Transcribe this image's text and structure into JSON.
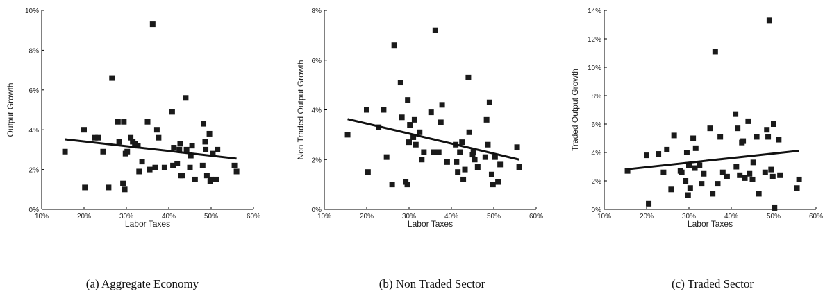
{
  "chart_data": [
    {
      "type": "scatter",
      "caption": "(a) Aggregate Economy",
      "xlabel": "Labor Taxes",
      "ylabel": "Output Growth",
      "xlim": [
        0.1,
        0.6
      ],
      "ylim": [
        0,
        0.1
      ],
      "xticks": [
        0.1,
        0.2,
        0.3,
        0.4,
        0.5,
        0.6
      ],
      "xtick_labels": [
        "10%",
        "20%",
        "30%",
        "40%",
        "50%",
        "60%"
      ],
      "yticks": [
        0,
        0.02,
        0.04,
        0.06,
        0.08,
        0.1
      ],
      "ytick_labels": [
        "0%",
        "2%",
        "4%",
        "6%",
        "8%",
        "10%"
      ],
      "grid": false,
      "trend_line": {
        "x": [
          0.155,
          0.56
        ],
        "y": [
          0.0352,
          0.0255
        ]
      },
      "points": [
        [
          0.155,
          0.029
        ],
        [
          0.2,
          0.04
        ],
        [
          0.202,
          0.011
        ],
        [
          0.226,
          0.036
        ],
        [
          0.233,
          0.036
        ],
        [
          0.245,
          0.029
        ],
        [
          0.258,
          0.011
        ],
        [
          0.266,
          0.066
        ],
        [
          0.28,
          0.044
        ],
        [
          0.283,
          0.034
        ],
        [
          0.292,
          0.013
        ],
        [
          0.294,
          0.044
        ],
        [
          0.296,
          0.01
        ],
        [
          0.298,
          0.028
        ],
        [
          0.302,
          0.029
        ],
        [
          0.31,
          0.036
        ],
        [
          0.315,
          0.034
        ],
        [
          0.32,
          0.033
        ],
        [
          0.327,
          0.032
        ],
        [
          0.33,
          0.019
        ],
        [
          0.337,
          0.024
        ],
        [
          0.35,
          0.044
        ],
        [
          0.355,
          0.02
        ],
        [
          0.362,
          0.093
        ],
        [
          0.368,
          0.021
        ],
        [
          0.372,
          0.04
        ],
        [
          0.376,
          0.036
        ],
        [
          0.39,
          0.021
        ],
        [
          0.408,
          0.049
        ],
        [
          0.41,
          0.022
        ],
        [
          0.412,
          0.031
        ],
        [
          0.42,
          0.023
        ],
        [
          0.425,
          0.03
        ],
        [
          0.427,
          0.033
        ],
        [
          0.428,
          0.017
        ],
        [
          0.432,
          0.017
        ],
        [
          0.44,
          0.056
        ],
        [
          0.442,
          0.03
        ],
        [
          0.45,
          0.021
        ],
        [
          0.452,
          0.027
        ],
        [
          0.455,
          0.032
        ],
        [
          0.462,
          0.015
        ],
        [
          0.48,
          0.022
        ],
        [
          0.482,
          0.043
        ],
        [
          0.486,
          0.034
        ],
        [
          0.487,
          0.03
        ],
        [
          0.49,
          0.017
        ],
        [
          0.496,
          0.038
        ],
        [
          0.498,
          0.014
        ],
        [
          0.5,
          0.015
        ],
        [
          0.504,
          0.028
        ],
        [
          0.512,
          0.015
        ],
        [
          0.515,
          0.03
        ],
        [
          0.555,
          0.022
        ],
        [
          0.56,
          0.019
        ]
      ]
    },
    {
      "type": "scatter",
      "caption": "(b) Non Traded Sector",
      "xlabel": "Labor Taxes",
      "ylabel": "Non Traded Output Growth",
      "xlim": [
        0.1,
        0.6
      ],
      "ylim": [
        0,
        0.08
      ],
      "xticks": [
        0.1,
        0.2,
        0.3,
        0.4,
        0.5,
        0.6
      ],
      "xtick_labels": [
        "10%",
        "20%",
        "30%",
        "40%",
        "50%",
        "60%"
      ],
      "yticks": [
        0,
        0.02,
        0.04,
        0.06,
        0.08
      ],
      "ytick_labels": [
        "0%",
        "2%",
        "4%",
        "6%",
        "8%"
      ],
      "grid": false,
      "trend_line": {
        "x": [
          0.155,
          0.56
        ],
        "y": [
          0.0363,
          0.02
        ]
      },
      "points": [
        [
          0.155,
          0.03
        ],
        [
          0.2,
          0.04
        ],
        [
          0.203,
          0.015
        ],
        [
          0.228,
          0.033
        ],
        [
          0.24,
          0.04
        ],
        [
          0.247,
          0.021
        ],
        [
          0.26,
          0.01
        ],
        [
          0.265,
          0.066
        ],
        [
          0.28,
          0.051
        ],
        [
          0.283,
          0.037
        ],
        [
          0.292,
          0.011
        ],
        [
          0.296,
          0.01
        ],
        [
          0.297,
          0.044
        ],
        [
          0.3,
          0.027
        ],
        [
          0.302,
          0.034
        ],
        [
          0.31,
          0.029
        ],
        [
          0.313,
          0.036
        ],
        [
          0.316,
          0.026
        ],
        [
          0.325,
          0.031
        ],
        [
          0.33,
          0.02
        ],
        [
          0.335,
          0.023
        ],
        [
          0.352,
          0.039
        ],
        [
          0.358,
          0.023
        ],
        [
          0.362,
          0.072
        ],
        [
          0.37,
          0.023
        ],
        [
          0.375,
          0.035
        ],
        [
          0.378,
          0.042
        ],
        [
          0.39,
          0.019
        ],
        [
          0.41,
          0.026
        ],
        [
          0.412,
          0.019
        ],
        [
          0.415,
          0.015
        ],
        [
          0.42,
          0.023
        ],
        [
          0.425,
          0.027
        ],
        [
          0.428,
          0.012
        ],
        [
          0.432,
          0.016
        ],
        [
          0.44,
          0.053
        ],
        [
          0.442,
          0.031
        ],
        [
          0.45,
          0.022
        ],
        [
          0.452,
          0.023
        ],
        [
          0.455,
          0.02
        ],
        [
          0.462,
          0.017
        ],
        [
          0.48,
          0.021
        ],
        [
          0.483,
          0.036
        ],
        [
          0.486,
          0.026
        ],
        [
          0.49,
          0.043
        ],
        [
          0.495,
          0.014
        ],
        [
          0.498,
          0.01
        ],
        [
          0.503,
          0.021
        ],
        [
          0.51,
          0.011
        ],
        [
          0.515,
          0.018
        ],
        [
          0.555,
          0.025
        ],
        [
          0.56,
          0.017
        ]
      ]
    },
    {
      "type": "scatter",
      "caption": "(c) Traded Sector",
      "xlabel": "Labor Taxes",
      "ylabel": "Traded Output Growth",
      "xlim": [
        0.1,
        0.6
      ],
      "ylim": [
        0,
        0.14
      ],
      "xticks": [
        0.1,
        0.2,
        0.3,
        0.4,
        0.5,
        0.6
      ],
      "xtick_labels": [
        "10%",
        "20%",
        "30%",
        "40%",
        "50%",
        "60%"
      ],
      "yticks": [
        0,
        0.02,
        0.04,
        0.06,
        0.08,
        0.1,
        0.12,
        0.14
      ],
      "ytick_labels": [
        "0%",
        "2%",
        "4%",
        "6%",
        "8%",
        "10%",
        "12%",
        "14%"
      ],
      "grid": false,
      "trend_line": {
        "x": [
          0.155,
          0.56
        ],
        "y": [
          0.0282,
          0.0412
        ]
      },
      "points": [
        [
          0.155,
          0.027
        ],
        [
          0.2,
          0.038
        ],
        [
          0.205,
          0.004
        ],
        [
          0.228,
          0.039
        ],
        [
          0.24,
          0.026
        ],
        [
          0.248,
          0.042
        ],
        [
          0.258,
          0.014
        ],
        [
          0.265,
          0.052
        ],
        [
          0.28,
          0.027
        ],
        [
          0.283,
          0.026
        ],
        [
          0.292,
          0.02
        ],
        [
          0.295,
          0.04
        ],
        [
          0.298,
          0.01
        ],
        [
          0.3,
          0.031
        ],
        [
          0.303,
          0.015
        ],
        [
          0.31,
          0.05
        ],
        [
          0.314,
          0.029
        ],
        [
          0.316,
          0.043
        ],
        [
          0.325,
          0.031
        ],
        [
          0.33,
          0.018
        ],
        [
          0.335,
          0.025
        ],
        [
          0.35,
          0.057
        ],
        [
          0.356,
          0.011
        ],
        [
          0.362,
          0.111
        ],
        [
          0.368,
          0.018
        ],
        [
          0.374,
          0.051
        ],
        [
          0.38,
          0.026
        ],
        [
          0.39,
          0.023
        ],
        [
          0.41,
          0.067
        ],
        [
          0.412,
          0.03
        ],
        [
          0.415,
          0.057
        ],
        [
          0.42,
          0.024
        ],
        [
          0.425,
          0.047
        ],
        [
          0.428,
          0.048
        ],
        [
          0.432,
          0.022
        ],
        [
          0.44,
          0.062
        ],
        [
          0.443,
          0.025
        ],
        [
          0.45,
          0.021
        ],
        [
          0.452,
          0.033
        ],
        [
          0.46,
          0.051
        ],
        [
          0.465,
          0.011
        ],
        [
          0.48,
          0.026
        ],
        [
          0.484,
          0.056
        ],
        [
          0.487,
          0.051
        ],
        [
          0.49,
          0.133
        ],
        [
          0.494,
          0.028
        ],
        [
          0.498,
          0.023
        ],
        [
          0.5,
          0.06
        ],
        [
          0.502,
          0.001
        ],
        [
          0.512,
          0.049
        ],
        [
          0.515,
          0.024
        ],
        [
          0.555,
          0.015
        ],
        [
          0.56,
          0.021
        ]
      ]
    }
  ]
}
